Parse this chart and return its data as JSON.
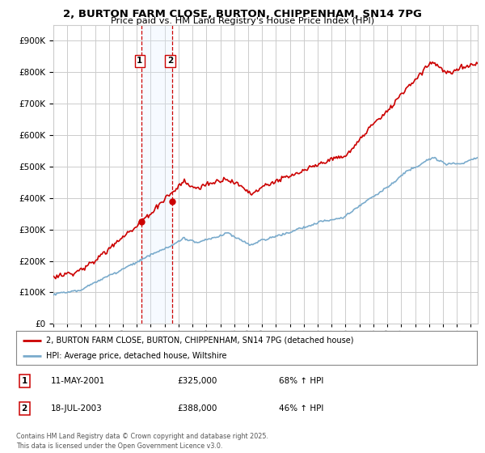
{
  "title_line1": "2, BURTON FARM CLOSE, BURTON, CHIPPENHAM, SN14 7PG",
  "title_line2": "Price paid vs. HM Land Registry's House Price Index (HPI)",
  "xlim_start": 1995.0,
  "xlim_end": 2025.5,
  "ylim_min": 0,
  "ylim_max": 950000,
  "sale1_date": "11-MAY-2001",
  "sale1_price": 325000,
  "sale1_hpi": "68% ↑ HPI",
  "sale1_year": 2001.36,
  "sale2_date": "18-JUL-2003",
  "sale2_price": 388000,
  "sale2_hpi": "46% ↑ HPI",
  "sale2_year": 2003.54,
  "legend_line1": "2, BURTON FARM CLOSE, BURTON, CHIPPENHAM, SN14 7PG (detached house)",
  "legend_line2": "HPI: Average price, detached house, Wiltshire",
  "footer": "Contains HM Land Registry data © Crown copyright and database right 2025.\nThis data is licensed under the Open Government Licence v3.0.",
  "line_color_red": "#cc0000",
  "line_color_blue": "#7aabcc",
  "background_color": "#ffffff",
  "grid_color": "#cccccc",
  "highlight_box_color": "#ddeeff"
}
